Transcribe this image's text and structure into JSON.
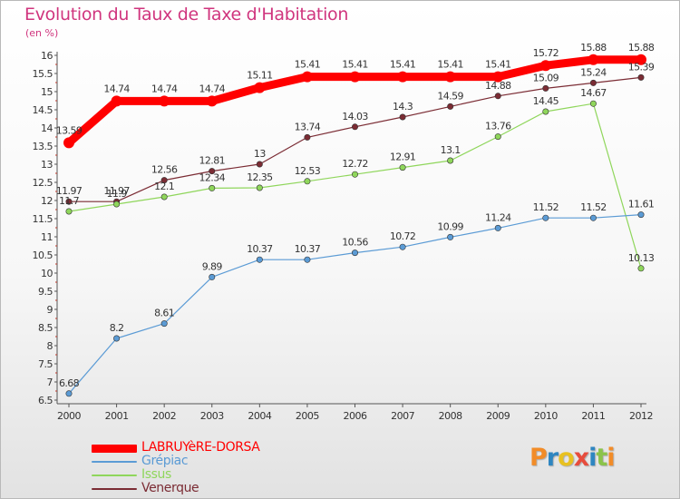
{
  "header": {
    "title": "Evolution du Taux de Taxe d'Habitation",
    "unit_label": "(en %)"
  },
  "chart_data": {
    "type": "line",
    "x": [
      "2000",
      "2001",
      "2002",
      "2003",
      "2004",
      "2005",
      "2006",
      "2007",
      "2008",
      "2009",
      "2010",
      "2011",
      "2012"
    ],
    "ylim": [
      6.5,
      16
    ],
    "yticks": [
      "6.5",
      "7",
      "7.5",
      "8",
      "8.5",
      "9",
      "9.5",
      "10",
      "10.5",
      "11",
      "11.5",
      "12",
      "12.5",
      "13",
      "13.5",
      "14",
      "14.5",
      "15",
      "15.5",
      "16"
    ],
    "grid": false,
    "legend_position": "bottom-left",
    "series": [
      {
        "name": "LABRUYèRE-DORSA",
        "color": "#ff0000",
        "values": [
          13.59,
          14.74,
          14.74,
          14.74,
          15.11,
          15.41,
          15.41,
          15.41,
          15.41,
          15.41,
          15.72,
          15.88,
          15.88
        ],
        "labels": [
          "13.59",
          "14.74",
          "14.74",
          "14.74",
          "15.11",
          "15.41",
          "15.41",
          "15.41",
          "15.41",
          "15.41",
          "15.72",
          "15.88",
          "15.88"
        ]
      },
      {
        "name": "Grépiac",
        "color": "#5b9bd5",
        "values": [
          6.68,
          8.2,
          8.61,
          9.89,
          10.37,
          10.37,
          10.56,
          10.72,
          10.99,
          11.24,
          11.52,
          11.52,
          11.61
        ],
        "labels": [
          "6.68",
          "8.2",
          "8.61",
          "9.89",
          "10.37",
          "10.37",
          "10.56",
          "10.72",
          "10.99",
          "11.24",
          "11.52",
          "11.52",
          "11.61"
        ]
      },
      {
        "name": "Issus",
        "color": "#8fd65b",
        "values": [
          11.7,
          11.9,
          12.1,
          12.34,
          12.35,
          12.53,
          12.72,
          12.91,
          13.1,
          13.76,
          14.45,
          14.67,
          10.13
        ],
        "labels": [
          "11.7",
          "11.9",
          "12.1",
          "12.34",
          "12.35",
          "12.53",
          "12.72",
          "12.91",
          "13.1",
          "13.76",
          "14.45",
          "14.67",
          "10.13"
        ]
      },
      {
        "name": "Venerque",
        "color": "#7b2c34",
        "values": [
          11.97,
          11.97,
          12.56,
          12.81,
          13,
          13.74,
          14.03,
          14.3,
          14.59,
          14.88,
          15.09,
          15.24,
          15.39
        ],
        "labels": [
          "11.97",
          "11.97",
          "12.56",
          "12.81",
          "13",
          "13.74",
          "14.03",
          "14.3",
          "14.59",
          "14.88",
          "15.09",
          "15.24",
          "15.39"
        ]
      }
    ]
  },
  "logo": {
    "letters": [
      "P",
      "r",
      "o",
      "x",
      "i",
      "t",
      "i"
    ],
    "colors": [
      "#f28c28",
      "#2e86c1",
      "#e8c120",
      "#e74c3c",
      "#2e86c1",
      "#8bc34a",
      "#f28c28"
    ]
  }
}
